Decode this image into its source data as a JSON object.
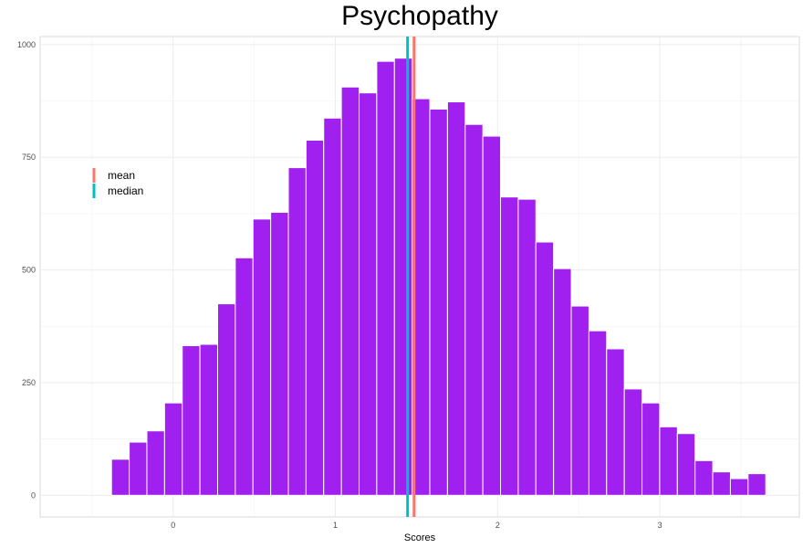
{
  "chart_data": {
    "type": "bar",
    "title": "Psychopathy",
    "xlabel": "Scores",
    "ylabel": "",
    "x_ticks": [
      0,
      1,
      2,
      3
    ],
    "y_ticks": [
      0,
      250,
      500,
      750,
      1000
    ],
    "xlim": [
      -0.82,
      3.86
    ],
    "ylim": [
      -48,
      1018
    ],
    "bin_width": 0.109,
    "bins_start": -0.38,
    "counts": [
      80,
      118,
      143,
      205,
      332,
      335,
      425,
      527,
      613,
      628,
      727,
      788,
      837,
      906,
      893,
      963,
      970,
      880,
      857,
      873,
      823,
      797,
      662,
      657,
      562,
      503,
      420,
      365,
      325,
      236,
      205,
      152,
      137,
      77,
      52,
      37,
      48
    ],
    "bar_color": "#a020f0",
    "grid": true,
    "legend_position": "top-left",
    "vlines": [
      {
        "name": "mean",
        "x": 1.485,
        "color": "#f8766d"
      },
      {
        "name": "median",
        "x": 1.445,
        "color": "#00bfc4"
      }
    ]
  }
}
